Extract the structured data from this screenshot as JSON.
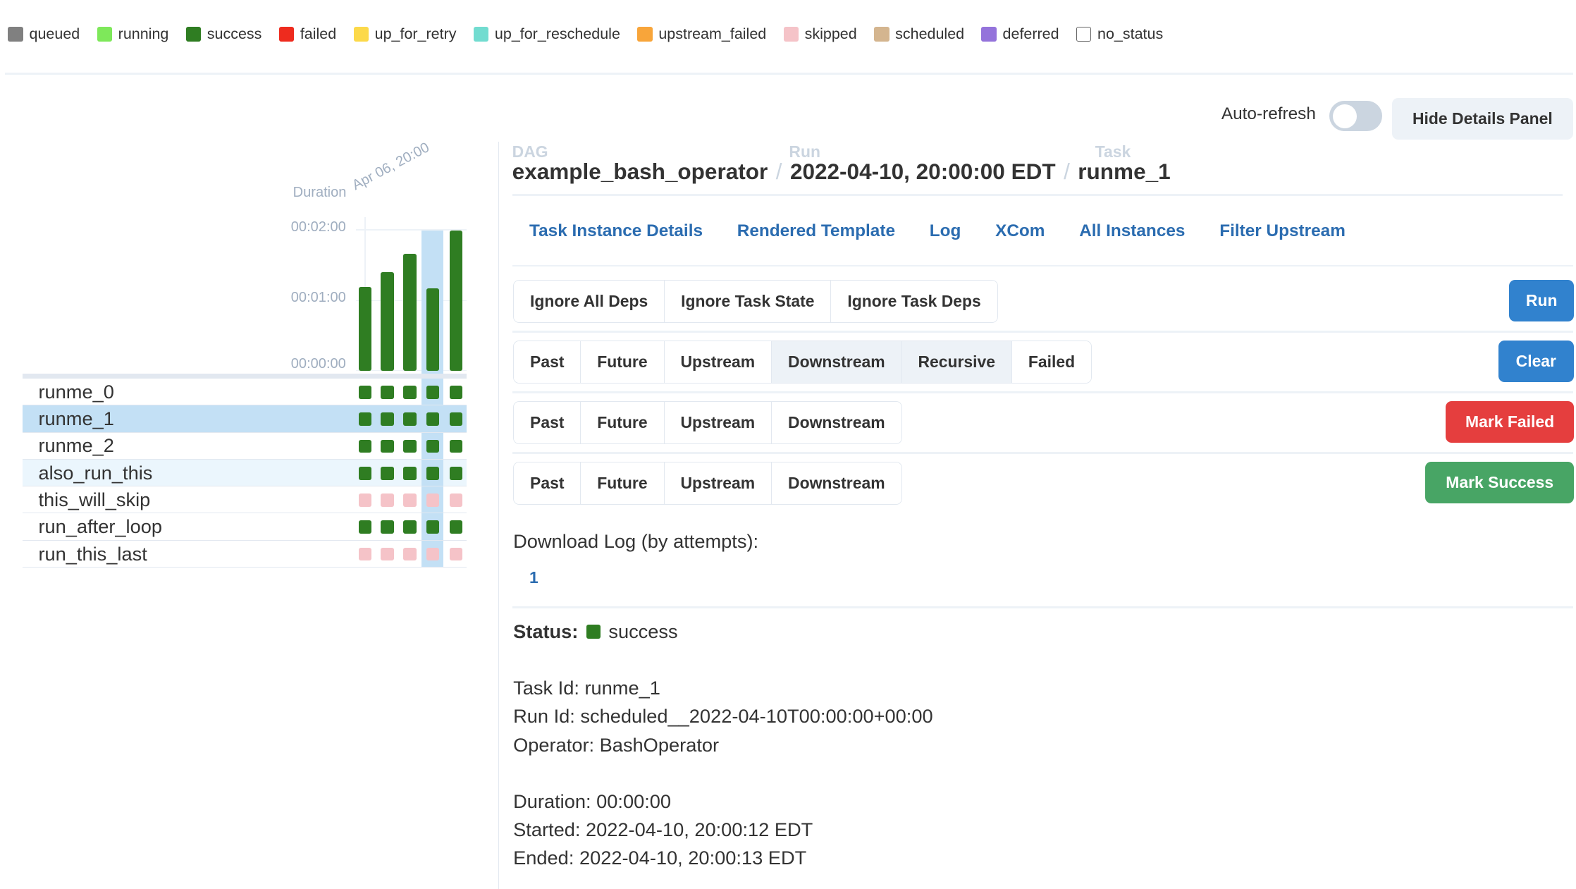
{
  "legend": [
    {
      "label": "queued",
      "color": "#808080"
    },
    {
      "label": "running",
      "color": "#7ee85a"
    },
    {
      "label": "success",
      "color": "#2f7d22"
    },
    {
      "label": "failed",
      "color": "#ee2b1e"
    },
    {
      "label": "up_for_retry",
      "color": "#fcd94a"
    },
    {
      "label": "up_for_reschedule",
      "color": "#72dcd0"
    },
    {
      "label": "upstream_failed",
      "color": "#f8a53a"
    },
    {
      "label": "skipped",
      "color": "#f5c3c8"
    },
    {
      "label": "scheduled",
      "color": "#d4b58f"
    },
    {
      "label": "deferred",
      "color": "#9473db"
    },
    {
      "label": "no_status",
      "color": "#ffffff"
    }
  ],
  "header": {
    "auto_refresh_label": "Auto-refresh",
    "auto_refresh_on": false,
    "hide_details": "Hide Details Panel"
  },
  "chart_data": {
    "type": "bar",
    "ylabel": "Duration",
    "date_label": "Apr 06, 20:00",
    "yticks": [
      "00:00:00",
      "00:01:00",
      "00:02:00"
    ],
    "ylim_seconds": [
      0,
      120
    ],
    "values_seconds": [
      71,
      84,
      99,
      70,
      119
    ],
    "selected_index": 3,
    "color": "#2f7d22"
  },
  "grid": {
    "selected_row": 1,
    "hover_row": 3,
    "rows": [
      {
        "task": "runme_0",
        "states": [
          "success",
          "success",
          "success",
          "success",
          "success"
        ]
      },
      {
        "task": "runme_1",
        "states": [
          "success",
          "success",
          "success",
          "success",
          "success"
        ]
      },
      {
        "task": "runme_2",
        "states": [
          "success",
          "success",
          "success",
          "success",
          "success"
        ]
      },
      {
        "task": "also_run_this",
        "states": [
          "success",
          "success",
          "success",
          "success",
          "success"
        ]
      },
      {
        "task": "this_will_skip",
        "states": [
          "skipped",
          "skipped",
          "skipped",
          "skipped",
          "skipped"
        ]
      },
      {
        "task": "run_after_loop",
        "states": [
          "success",
          "success",
          "success",
          "success",
          "success"
        ]
      },
      {
        "task": "run_this_last",
        "states": [
          "skipped",
          "skipped",
          "skipped",
          "skipped",
          "skipped"
        ]
      }
    ]
  },
  "breadcrumb": {
    "dag_label": "DAG",
    "dag": "example_bash_operator",
    "run_label": "Run",
    "run": "2022-04-10, 20:00:00 EDT",
    "task_label": "Task",
    "task": "runme_1",
    "sep": "/"
  },
  "tabs": [
    "Task Instance Details",
    "Rendered Template",
    "Log",
    "XCom",
    "All Instances",
    "Filter Upstream"
  ],
  "run_row": {
    "options": [
      "Ignore All Deps",
      "Ignore Task State",
      "Ignore Task Deps"
    ],
    "action": "Run"
  },
  "clear_row": {
    "options": [
      "Past",
      "Future",
      "Upstream",
      "Downstream",
      "Recursive",
      "Failed"
    ],
    "active": [
      "Downstream",
      "Recursive"
    ],
    "action": "Clear"
  },
  "failed_row": {
    "options": [
      "Past",
      "Future",
      "Upstream",
      "Downstream"
    ],
    "action": "Mark Failed"
  },
  "success_row": {
    "options": [
      "Past",
      "Future",
      "Upstream",
      "Downstream"
    ],
    "action": "Mark Success"
  },
  "download": {
    "label": "Download Log (by attempts):",
    "attempts": [
      "1"
    ]
  },
  "status": {
    "label": "Status:",
    "value": "success"
  },
  "details": {
    "task_id": "Task Id: runme_1",
    "run_id": "Run Id: scheduled__2022-04-10T00:00:00+00:00",
    "operator": "Operator: BashOperator",
    "duration": "Duration: 00:00:00",
    "started": "Started: 2022-04-10, 20:00:12 EDT",
    "ended": "Ended: 2022-04-10, 20:00:13 EDT"
  },
  "colors": {
    "success": "#2f7d22",
    "skipped": "#f5c3c8",
    "link": "#2b6cb0",
    "run": "#3182ce",
    "clear": "#3182ce",
    "failed": "#e53e3e",
    "mark_success": "#48a565",
    "highlight": "#c3e0f5"
  }
}
